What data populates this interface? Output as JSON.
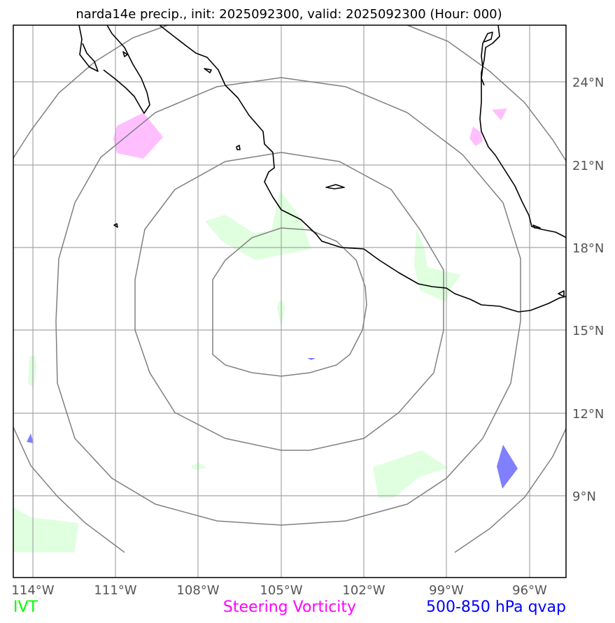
{
  "title": "narda14e precip., init: 2025092300, valid: 2025092300 (Hour: 000)",
  "x_ticks": [
    "114°W",
    "111°W",
    "108°W",
    "105°W",
    "102°W",
    "99°W",
    "96°W"
  ],
  "y_ticks": [
    "24°N",
    "21°N",
    "18°N",
    "15°N",
    "12°N",
    "9°N"
  ],
  "legend": {
    "ivt": "IVT",
    "steering_vorticity": "Steering Vorticity",
    "qvap": "500-850 hPa qvap"
  },
  "colors": {
    "ivt": "#00ff00",
    "steering_vorticity": "#ff00ff",
    "qvap": "#0000ff",
    "ivt_fill": "#dfffdf",
    "vorticity_fill": "#ffbfff",
    "qvap_fill": "#8080ff",
    "range_rings": "#808080",
    "gridlines": "#a6a6a6",
    "coastline": "#000000"
  }
}
